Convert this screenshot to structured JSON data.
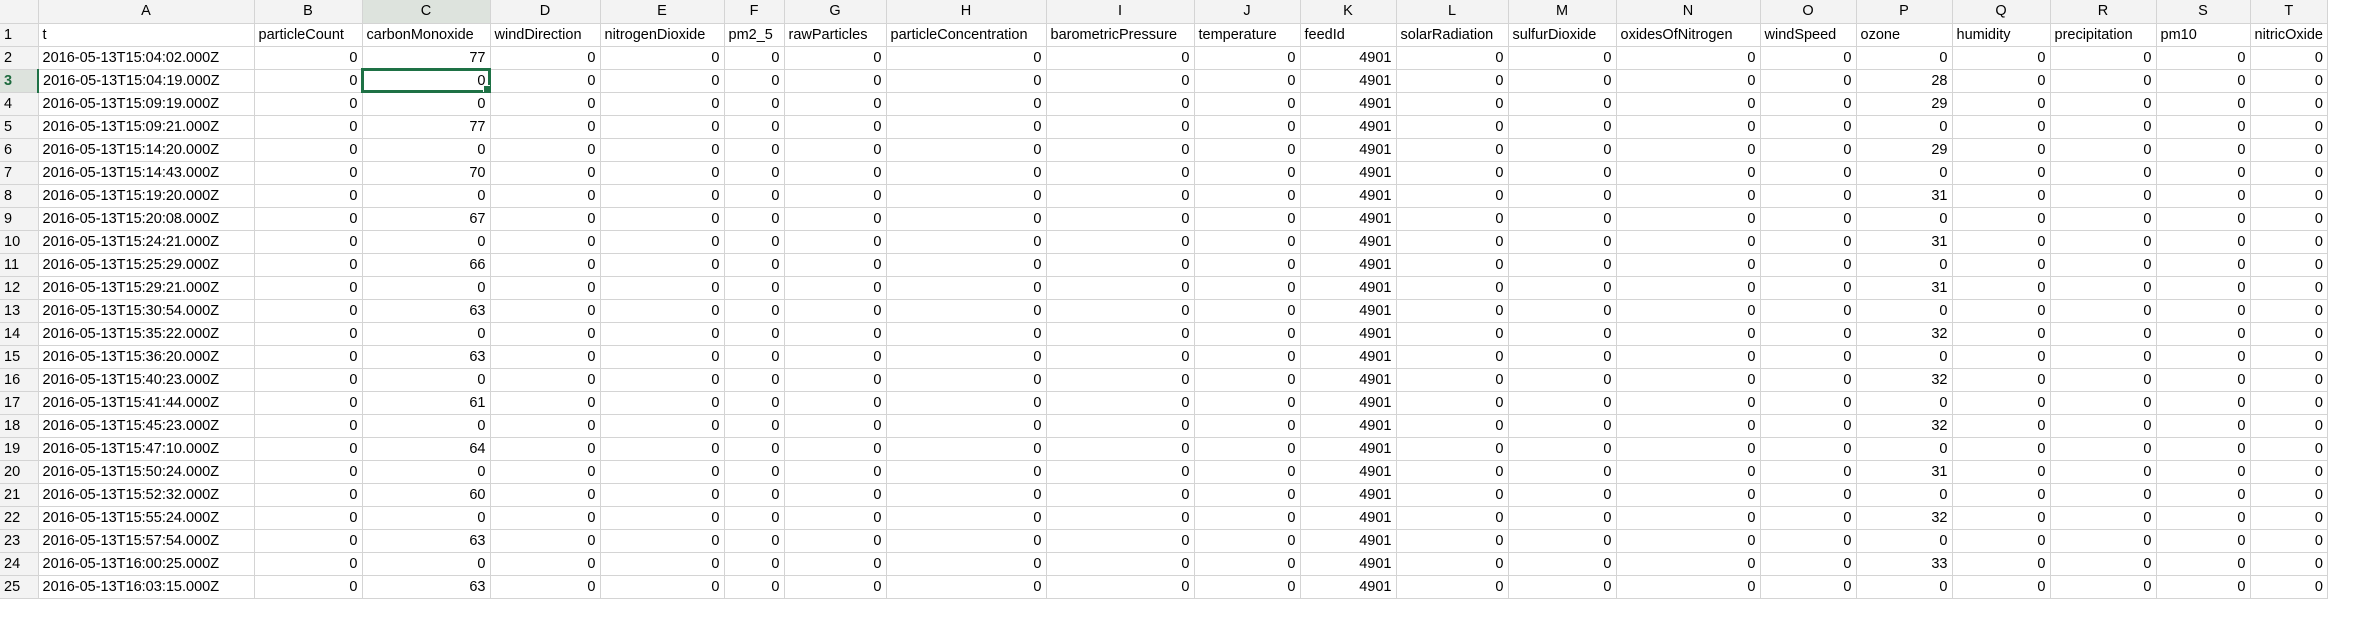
{
  "sheet": {
    "column_letters": [
      "A",
      "B",
      "C",
      "D",
      "E",
      "F",
      "G",
      "H",
      "I",
      "J",
      "K",
      "L",
      "M",
      "N",
      "O",
      "P",
      "Q",
      "R",
      "S",
      "T"
    ],
    "active_column": "C",
    "active_row": 3,
    "selected_cell": "C3",
    "header_row_number": 1,
    "headers": [
      "t",
      "particleCount",
      "carbonMonoxide",
      "windDirection",
      "nitrogenDioxide",
      "pm2_5",
      "rawParticles",
      "particleConcentration",
      "barometricPressure",
      "temperature",
      "feedId",
      "solarRadiation",
      "sulfurDioxide",
      "oxidesOfNitrogen",
      "windSpeed",
      "ozone",
      "humidity",
      "precipitation",
      "pm10",
      "nitricOxide"
    ],
    "rows": [
      {
        "num": 2,
        "cells": [
          "2016-05-13T15:04:02.000Z",
          "0",
          "77",
          "0",
          "0",
          "0",
          "0",
          "0",
          "0",
          "0",
          "4901",
          "0",
          "0",
          "0",
          "0",
          "0",
          "0",
          "0",
          "0",
          "0"
        ]
      },
      {
        "num": 3,
        "cells": [
          "2016-05-13T15:04:19.000Z",
          "0",
          "0",
          "0",
          "0",
          "0",
          "0",
          "0",
          "0",
          "0",
          "4901",
          "0",
          "0",
          "0",
          "0",
          "28",
          "0",
          "0",
          "0",
          "0"
        ]
      },
      {
        "num": 4,
        "cells": [
          "2016-05-13T15:09:19.000Z",
          "0",
          "0",
          "0",
          "0",
          "0",
          "0",
          "0",
          "0",
          "0",
          "4901",
          "0",
          "0",
          "0",
          "0",
          "29",
          "0",
          "0",
          "0",
          "0"
        ]
      },
      {
        "num": 5,
        "cells": [
          "2016-05-13T15:09:21.000Z",
          "0",
          "77",
          "0",
          "0",
          "0",
          "0",
          "0",
          "0",
          "0",
          "4901",
          "0",
          "0",
          "0",
          "0",
          "0",
          "0",
          "0",
          "0",
          "0"
        ]
      },
      {
        "num": 6,
        "cells": [
          "2016-05-13T15:14:20.000Z",
          "0",
          "0",
          "0",
          "0",
          "0",
          "0",
          "0",
          "0",
          "0",
          "4901",
          "0",
          "0",
          "0",
          "0",
          "29",
          "0",
          "0",
          "0",
          "0"
        ]
      },
      {
        "num": 7,
        "cells": [
          "2016-05-13T15:14:43.000Z",
          "0",
          "70",
          "0",
          "0",
          "0",
          "0",
          "0",
          "0",
          "0",
          "4901",
          "0",
          "0",
          "0",
          "0",
          "0",
          "0",
          "0",
          "0",
          "0"
        ]
      },
      {
        "num": 8,
        "cells": [
          "2016-05-13T15:19:20.000Z",
          "0",
          "0",
          "0",
          "0",
          "0",
          "0",
          "0",
          "0",
          "0",
          "4901",
          "0",
          "0",
          "0",
          "0",
          "31",
          "0",
          "0",
          "0",
          "0"
        ]
      },
      {
        "num": 9,
        "cells": [
          "2016-05-13T15:20:08.000Z",
          "0",
          "67",
          "0",
          "0",
          "0",
          "0",
          "0",
          "0",
          "0",
          "4901",
          "0",
          "0",
          "0",
          "0",
          "0",
          "0",
          "0",
          "0",
          "0"
        ]
      },
      {
        "num": 10,
        "cells": [
          "2016-05-13T15:24:21.000Z",
          "0",
          "0",
          "0",
          "0",
          "0",
          "0",
          "0",
          "0",
          "0",
          "4901",
          "0",
          "0",
          "0",
          "0",
          "31",
          "0",
          "0",
          "0",
          "0"
        ]
      },
      {
        "num": 11,
        "cells": [
          "2016-05-13T15:25:29.000Z",
          "0",
          "66",
          "0",
          "0",
          "0",
          "0",
          "0",
          "0",
          "0",
          "4901",
          "0",
          "0",
          "0",
          "0",
          "0",
          "0",
          "0",
          "0",
          "0"
        ]
      },
      {
        "num": 12,
        "cells": [
          "2016-05-13T15:29:21.000Z",
          "0",
          "0",
          "0",
          "0",
          "0",
          "0",
          "0",
          "0",
          "0",
          "4901",
          "0",
          "0",
          "0",
          "0",
          "31",
          "0",
          "0",
          "0",
          "0"
        ]
      },
      {
        "num": 13,
        "cells": [
          "2016-05-13T15:30:54.000Z",
          "0",
          "63",
          "0",
          "0",
          "0",
          "0",
          "0",
          "0",
          "0",
          "4901",
          "0",
          "0",
          "0",
          "0",
          "0",
          "0",
          "0",
          "0",
          "0"
        ]
      },
      {
        "num": 14,
        "cells": [
          "2016-05-13T15:35:22.000Z",
          "0",
          "0",
          "0",
          "0",
          "0",
          "0",
          "0",
          "0",
          "0",
          "4901",
          "0",
          "0",
          "0",
          "0",
          "32",
          "0",
          "0",
          "0",
          "0"
        ]
      },
      {
        "num": 15,
        "cells": [
          "2016-05-13T15:36:20.000Z",
          "0",
          "63",
          "0",
          "0",
          "0",
          "0",
          "0",
          "0",
          "0",
          "4901",
          "0",
          "0",
          "0",
          "0",
          "0",
          "0",
          "0",
          "0",
          "0"
        ]
      },
      {
        "num": 16,
        "cells": [
          "2016-05-13T15:40:23.000Z",
          "0",
          "0",
          "0",
          "0",
          "0",
          "0",
          "0",
          "0",
          "0",
          "4901",
          "0",
          "0",
          "0",
          "0",
          "32",
          "0",
          "0",
          "0",
          "0"
        ]
      },
      {
        "num": 17,
        "cells": [
          "2016-05-13T15:41:44.000Z",
          "0",
          "61",
          "0",
          "0",
          "0",
          "0",
          "0",
          "0",
          "0",
          "4901",
          "0",
          "0",
          "0",
          "0",
          "0",
          "0",
          "0",
          "0",
          "0"
        ]
      },
      {
        "num": 18,
        "cells": [
          "2016-05-13T15:45:23.000Z",
          "0",
          "0",
          "0",
          "0",
          "0",
          "0",
          "0",
          "0",
          "0",
          "4901",
          "0",
          "0",
          "0",
          "0",
          "32",
          "0",
          "0",
          "0",
          "0"
        ]
      },
      {
        "num": 19,
        "cells": [
          "2016-05-13T15:47:10.000Z",
          "0",
          "64",
          "0",
          "0",
          "0",
          "0",
          "0",
          "0",
          "0",
          "4901",
          "0",
          "0",
          "0",
          "0",
          "0",
          "0",
          "0",
          "0",
          "0"
        ]
      },
      {
        "num": 20,
        "cells": [
          "2016-05-13T15:50:24.000Z",
          "0",
          "0",
          "0",
          "0",
          "0",
          "0",
          "0",
          "0",
          "0",
          "4901",
          "0",
          "0",
          "0",
          "0",
          "31",
          "0",
          "0",
          "0",
          "0"
        ]
      },
      {
        "num": 21,
        "cells": [
          "2016-05-13T15:52:32.000Z",
          "0",
          "60",
          "0",
          "0",
          "0",
          "0",
          "0",
          "0",
          "0",
          "4901",
          "0",
          "0",
          "0",
          "0",
          "0",
          "0",
          "0",
          "0",
          "0"
        ]
      },
      {
        "num": 22,
        "cells": [
          "2016-05-13T15:55:24.000Z",
          "0",
          "0",
          "0",
          "0",
          "0",
          "0",
          "0",
          "0",
          "0",
          "4901",
          "0",
          "0",
          "0",
          "0",
          "32",
          "0",
          "0",
          "0",
          "0"
        ]
      },
      {
        "num": 23,
        "cells": [
          "2016-05-13T15:57:54.000Z",
          "0",
          "63",
          "0",
          "0",
          "0",
          "0",
          "0",
          "0",
          "0",
          "4901",
          "0",
          "0",
          "0",
          "0",
          "0",
          "0",
          "0",
          "0",
          "0"
        ]
      },
      {
        "num": 24,
        "cells": [
          "2016-05-13T16:00:25.000Z",
          "0",
          "0",
          "0",
          "0",
          "0",
          "0",
          "0",
          "0",
          "0",
          "4901",
          "0",
          "0",
          "0",
          "0",
          "33",
          "0",
          "0",
          "0",
          "0"
        ]
      },
      {
        "num": 25,
        "cells": [
          "2016-05-13T16:03:15.000Z",
          "0",
          "63",
          "0",
          "0",
          "0",
          "0",
          "0",
          "0",
          "0",
          "4901",
          "0",
          "0",
          "0",
          "0",
          "0",
          "0",
          "0",
          "0",
          "0"
        ]
      }
    ]
  },
  "colors": {
    "grid_line": "#d4d4d4",
    "header_bg": "#f3f3f3",
    "selection": "#1e7145"
  }
}
